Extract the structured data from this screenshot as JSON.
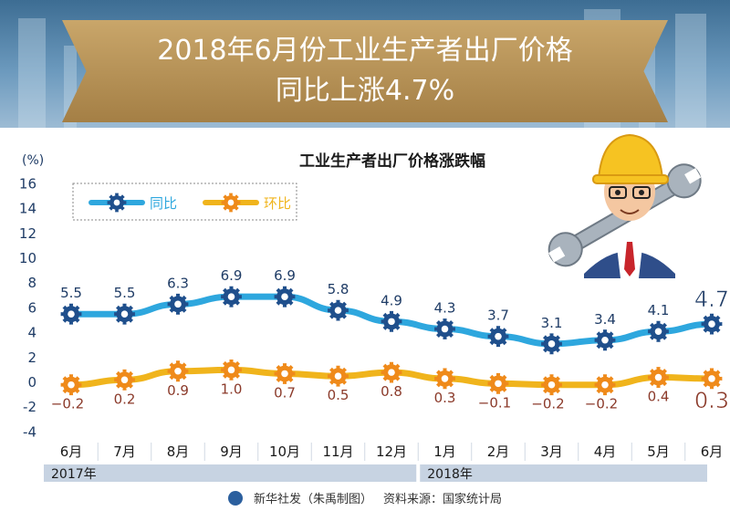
{
  "header": {
    "title_line1": "2018年6月份工业生产者出厂价格",
    "title_line2": "同比上涨4.7%"
  },
  "footer": {
    "credit": "新华社发（朱禹制图）",
    "source": "资料来源：国家统计局"
  },
  "colors": {
    "yoy": "#2ea7de",
    "mom": "#f0b41c",
    "yoy_label": "#1f3c66",
    "mom_label": "#8b3a2a",
    "gear_yoy": "#1f4f8c",
    "gear_mom": "#ef8a1a",
    "axis_text": "#1f3c66",
    "year_band": "#c7d3e2"
  },
  "chart_data": {
    "type": "line",
    "title": "工业生产者出厂价格涨跌幅",
    "ylabel": "(%)",
    "ylim": [
      -4,
      16
    ],
    "yticks": [
      -4,
      -2,
      0,
      2,
      4,
      6,
      8,
      10,
      12,
      14,
      16
    ],
    "categories": [
      "6月",
      "7月",
      "8月",
      "9月",
      "10月",
      "11月",
      "12月",
      "1月",
      "2月",
      "3月",
      "4月",
      "5月",
      "6月"
    ],
    "years": [
      {
        "label": "2017年",
        "from": 0,
        "to": 6
      },
      {
        "label": "2018年",
        "from": 7,
        "to": 12
      }
    ],
    "legend_position": "top-left",
    "grid": false,
    "series": [
      {
        "name": "同比",
        "key": "yoy",
        "values": [
          5.5,
          5.5,
          6.3,
          6.9,
          6.9,
          5.8,
          4.9,
          4.3,
          3.7,
          3.1,
          3.4,
          4.1,
          4.7
        ],
        "labels": [
          "5.5",
          "5.5",
          "6.3",
          "6.9",
          "6.9",
          "5.8",
          "4.9",
          "4.3",
          "3.7",
          "3.1",
          "3.4",
          "4.1",
          "4.7"
        ]
      },
      {
        "name": "环比",
        "key": "mom",
        "values": [
          -0.2,
          0.2,
          0.9,
          1.0,
          0.7,
          0.5,
          0.8,
          0.3,
          -0.1,
          -0.2,
          -0.2,
          0.4,
          0.3
        ],
        "labels": [
          "−0.2",
          "0.2",
          "0.9",
          "1.0",
          "0.7",
          "0.5",
          "0.8",
          "0.3",
          "−0.1",
          "−0.2",
          "−0.2",
          "0.4",
          "0.3"
        ]
      }
    ]
  }
}
